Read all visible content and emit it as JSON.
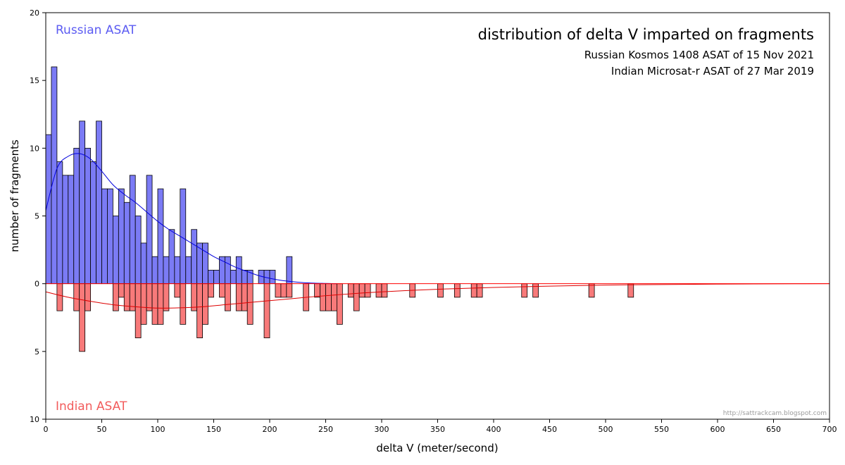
{
  "chart_data": {
    "type": "bar",
    "title": "distribution of delta V imparted on fragments",
    "subtitles": [
      "Russian Kosmos 1408 ASAT of 15 Nov 2021",
      "Indian Microsat-r ASAT of 27 Mar 2019"
    ],
    "xlabel": "delta V (meter/second)",
    "ylabel": "number of fragments",
    "xlim": [
      0,
      700
    ],
    "ylim": [
      -10,
      20
    ],
    "bin_width": 5,
    "x_ticks": [
      "0",
      "50",
      "100",
      "150",
      "200",
      "250",
      "300",
      "350",
      "400",
      "450",
      "500",
      "550",
      "600",
      "650",
      "700"
    ],
    "y_ticks": [
      {
        "value": 20,
        "label": "20"
      },
      {
        "value": 15,
        "label": "15"
      },
      {
        "value": 10,
        "label": "10"
      },
      {
        "value": 5,
        "label": "5"
      },
      {
        "value": 0,
        "label": "0"
      },
      {
        "value": -5,
        "label": "5"
      },
      {
        "value": -10,
        "label": "10"
      }
    ],
    "series": [
      {
        "name": "Russian ASAT",
        "color": "#7b7bf5",
        "curve_color": "#0000dd",
        "bin_starts": [
          0,
          5,
          10,
          15,
          20,
          25,
          30,
          35,
          40,
          45,
          50,
          55,
          60,
          65,
          70,
          75,
          80,
          85,
          90,
          95,
          100,
          105,
          110,
          115,
          120,
          125,
          130,
          135,
          140,
          145,
          150,
          155,
          160,
          165,
          170,
          175,
          180,
          190,
          195,
          200,
          215
        ],
        "counts": [
          11,
          16,
          9,
          8,
          8,
          10,
          12,
          10,
          9,
          12,
          7,
          7,
          5,
          7,
          6,
          8,
          5,
          3,
          8,
          2,
          7,
          2,
          4,
          2,
          7,
          2,
          4,
          3,
          3,
          1,
          1,
          2,
          2,
          1,
          2,
          1,
          1,
          1,
          1,
          1,
          2
        ],
        "curve": [
          [
            0,
            5.4
          ],
          [
            10,
            8.5
          ],
          [
            20,
            9.4
          ],
          [
            30,
            9.6
          ],
          [
            40,
            9.2
          ],
          [
            50,
            8.3
          ],
          [
            60,
            7.3
          ],
          [
            70,
            6.6
          ],
          [
            80,
            6.0
          ],
          [
            90,
            5.3
          ],
          [
            100,
            4.6
          ],
          [
            110,
            4.0
          ],
          [
            120,
            3.5
          ],
          [
            130,
            3.0
          ],
          [
            140,
            2.5
          ],
          [
            150,
            2.0
          ],
          [
            160,
            1.6
          ],
          [
            170,
            1.2
          ],
          [
            180,
            0.9
          ],
          [
            190,
            0.6
          ],
          [
            200,
            0.4
          ],
          [
            210,
            0.25
          ],
          [
            220,
            0.15
          ],
          [
            230,
            0.08
          ],
          [
            240,
            0.04
          ],
          [
            250,
            0.02
          ],
          [
            260,
            0.0
          ]
        ]
      },
      {
        "name": "Indian ASAT",
        "color": "#f87a7a",
        "curve_color": "#dd0000",
        "bin_starts": [
          10,
          25,
          30,
          35,
          60,
          65,
          70,
          75,
          80,
          85,
          90,
          95,
          100,
          105,
          115,
          120,
          130,
          135,
          140,
          145,
          155,
          160,
          170,
          175,
          180,
          195,
          205,
          210,
          215,
          230,
          240,
          245,
          250,
          255,
          260,
          270,
          275,
          280,
          285,
          295,
          300,
          325,
          350,
          365,
          380,
          385,
          425,
          435,
          485,
          520
        ],
        "counts": [
          2,
          2,
          5,
          2,
          2,
          1,
          2,
          2,
          4,
          3,
          2,
          3,
          3,
          2,
          1,
          3,
          2,
          4,
          3,
          1,
          1,
          2,
          2,
          2,
          3,
          4,
          1,
          1,
          1,
          2,
          1,
          2,
          2,
          2,
          3,
          1,
          2,
          1,
          1,
          1,
          1,
          1,
          1,
          1,
          1,
          1,
          1,
          1,
          1,
          1
        ],
        "curve": [
          [
            0,
            -0.6
          ],
          [
            20,
            -1.0
          ],
          [
            40,
            -1.3
          ],
          [
            60,
            -1.55
          ],
          [
            80,
            -1.7
          ],
          [
            100,
            -1.8
          ],
          [
            120,
            -1.78
          ],
          [
            140,
            -1.7
          ],
          [
            160,
            -1.55
          ],
          [
            180,
            -1.4
          ],
          [
            200,
            -1.25
          ],
          [
            220,
            -1.1
          ],
          [
            240,
            -0.95
          ],
          [
            260,
            -0.82
          ],
          [
            280,
            -0.7
          ],
          [
            300,
            -0.6
          ],
          [
            330,
            -0.48
          ],
          [
            360,
            -0.38
          ],
          [
            400,
            -0.28
          ],
          [
            450,
            -0.18
          ],
          [
            500,
            -0.1
          ],
          [
            550,
            -0.06
          ],
          [
            600,
            -0.03
          ],
          [
            650,
            -0.01
          ],
          [
            700,
            0.0
          ]
        ]
      }
    ],
    "credit": "http://sattrackcam.blogspot.com"
  }
}
